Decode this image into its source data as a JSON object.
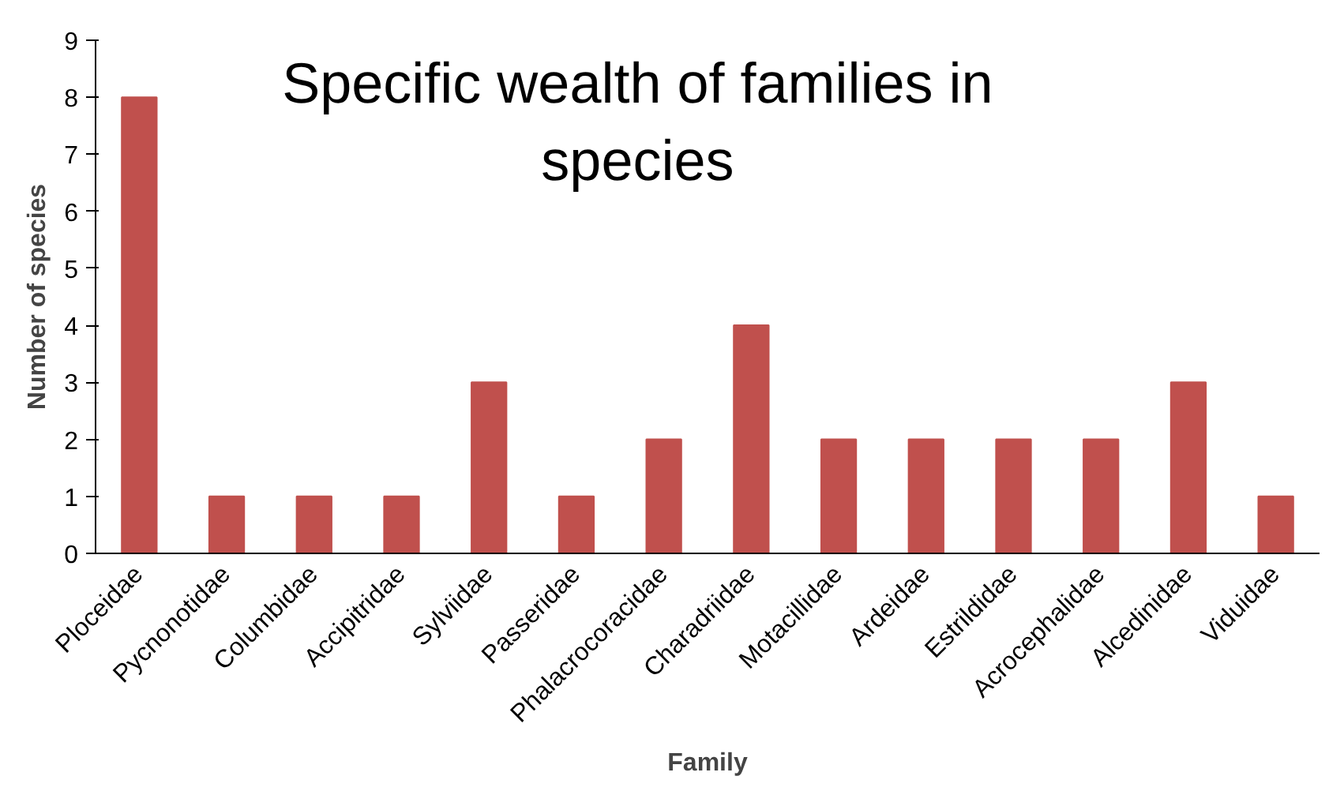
{
  "chart_data": {
    "type": "bar",
    "title": "Specific wealth of families in species",
    "xlabel": "Family",
    "ylabel": "Number of species",
    "categories": [
      "Ploceidae",
      "Pycnonotidae",
      "Columbidae",
      "Accipitridae",
      "Sylviidae",
      "Passeridae",
      "Phalacrocoracidae",
      "Charadriidae",
      "Motacillidae",
      "Ardeidae",
      "Estrildidae",
      "Acrocephalidae",
      "Alcedinidae",
      "Viduidae"
    ],
    "values": [
      8,
      1,
      1,
      1,
      3,
      1,
      2,
      4,
      2,
      2,
      2,
      2,
      3,
      1
    ],
    "color": "#c0504d",
    "ylim": [
      0,
      9
    ],
    "yticks": [
      0,
      1,
      2,
      3,
      4,
      5,
      6,
      7,
      8,
      9
    ],
    "grid": false
  }
}
